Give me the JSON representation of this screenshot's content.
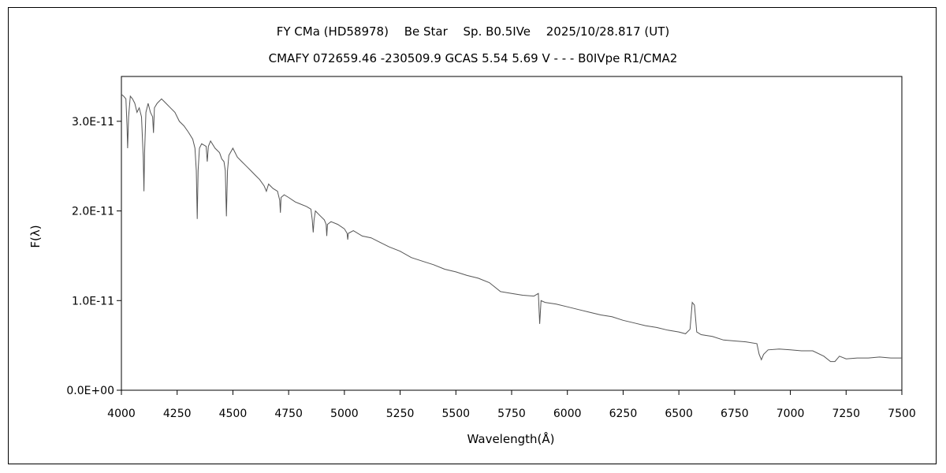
{
  "chart_data": {
    "type": "line",
    "title": "FY CMa (HD58978)　 Be Star　 Sp. B0.5IVe　 2025/10/28.817 (UT)",
    "subtitle": "CMAFY 072659.46 -230509.9 GCAS 5.54 5.69 V - - - B0IVpe R1/CMA2",
    "xlabel": "Wavelength(Å)",
    "ylabel": "F(λ)",
    "xlim": [
      4000,
      7500
    ],
    "ylim": [
      0,
      3.5e-11
    ],
    "xticks": [
      "4000",
      "4250",
      "4500",
      "4750",
      "5000",
      "5250",
      "5500",
      "5750",
      "6000",
      "6250",
      "6500",
      "6750",
      "7000",
      "7250",
      "7500"
    ],
    "yticks": [
      {
        "value": 0,
        "label": "0.0E+00"
      },
      {
        "value": 1e-11,
        "label": "1.0E-11"
      },
      {
        "value": 2e-11,
        "label": "2.0E-11"
      },
      {
        "value": 3e-11,
        "label": "3.0E-11"
      }
    ],
    "grid": false,
    "series": [
      {
        "color": "#555555",
        "points": [
          [
            4000,
            3.3e-11
          ],
          [
            4010,
            3.28e-11
          ],
          [
            4020,
            3.25e-11
          ],
          [
            4025,
            2.95e-11
          ],
          [
            4028,
            2.7e-11
          ],
          [
            4032,
            3.05e-11
          ],
          [
            4040,
            3.28e-11
          ],
          [
            4050,
            3.25e-11
          ],
          [
            4060,
            3.2e-11
          ],
          [
            4070,
            3.1e-11
          ],
          [
            4080,
            3.15e-11
          ],
          [
            4090,
            3.05e-11
          ],
          [
            4098,
            2.6e-11
          ],
          [
            4101,
            2.22e-11
          ],
          [
            4104,
            2.65e-11
          ],
          [
            4110,
            3.1e-11
          ],
          [
            4120,
            3.2e-11
          ],
          [
            4130,
            3.1e-11
          ],
          [
            4140,
            3.05e-11
          ],
          [
            4144,
            2.87e-11
          ],
          [
            4148,
            3.15e-11
          ],
          [
            4160,
            3.2e-11
          ],
          [
            4180,
            3.25e-11
          ],
          [
            4200,
            3.2e-11
          ],
          [
            4220,
            3.15e-11
          ],
          [
            4240,
            3.1e-11
          ],
          [
            4260,
            3e-11
          ],
          [
            4280,
            2.95e-11
          ],
          [
            4300,
            2.88e-11
          ],
          [
            4320,
            2.8e-11
          ],
          [
            4330,
            2.7e-11
          ],
          [
            4336,
            2.45e-11
          ],
          [
            4340,
            1.91e-11
          ],
          [
            4344,
            2.45e-11
          ],
          [
            4350,
            2.7e-11
          ],
          [
            4360,
            2.75e-11
          ],
          [
            4380,
            2.72e-11
          ],
          [
            4385,
            2.55e-11
          ],
          [
            4390,
            2.72e-11
          ],
          [
            4400,
            2.78e-11
          ],
          [
            4420,
            2.7e-11
          ],
          [
            4440,
            2.65e-11
          ],
          [
            4450,
            2.58e-11
          ],
          [
            4460,
            2.55e-11
          ],
          [
            4466,
            2.45e-11
          ],
          [
            4471,
            1.94e-11
          ],
          [
            4476,
            2.45e-11
          ],
          [
            4482,
            2.62e-11
          ],
          [
            4500,
            2.7e-11
          ],
          [
            4520,
            2.6e-11
          ],
          [
            4540,
            2.55e-11
          ],
          [
            4560,
            2.5e-11
          ],
          [
            4580,
            2.45e-11
          ],
          [
            4600,
            2.4e-11
          ],
          [
            4620,
            2.35e-11
          ],
          [
            4640,
            2.28e-11
          ],
          [
            4650,
            2.22e-11
          ],
          [
            4660,
            2.3e-11
          ],
          [
            4680,
            2.25e-11
          ],
          [
            4700,
            2.22e-11
          ],
          [
            4710,
            2.12e-11
          ],
          [
            4713,
            1.98e-11
          ],
          [
            4716,
            2.15e-11
          ],
          [
            4730,
            2.18e-11
          ],
          [
            4750,
            2.15e-11
          ],
          [
            4780,
            2.1e-11
          ],
          [
            4800,
            2.08e-11
          ],
          [
            4830,
            2.05e-11
          ],
          [
            4850,
            2.02e-11
          ],
          [
            4856,
            1.9e-11
          ],
          [
            4860,
            1.76e-11
          ],
          [
            4864,
            1.9e-11
          ],
          [
            4870,
            2e-11
          ],
          [
            4890,
            1.95e-11
          ],
          [
            4910,
            1.9e-11
          ],
          [
            4918,
            1.85e-11
          ],
          [
            4921,
            1.72e-11
          ],
          [
            4924,
            1.85e-11
          ],
          [
            4940,
            1.88e-11
          ],
          [
            4970,
            1.85e-11
          ],
          [
            5000,
            1.8e-11
          ],
          [
            5012,
            1.75e-11
          ],
          [
            5015,
            1.68e-11
          ],
          [
            5018,
            1.75e-11
          ],
          [
            5040,
            1.78e-11
          ],
          [
            5080,
            1.72e-11
          ],
          [
            5120,
            1.7e-11
          ],
          [
            5160,
            1.65e-11
          ],
          [
            5200,
            1.6e-11
          ],
          [
            5250,
            1.55e-11
          ],
          [
            5300,
            1.48e-11
          ],
          [
            5350,
            1.44e-11
          ],
          [
            5400,
            1.4e-11
          ],
          [
            5450,
            1.35e-11
          ],
          [
            5500,
            1.32e-11
          ],
          [
            5550,
            1.28e-11
          ],
          [
            5600,
            1.25e-11
          ],
          [
            5650,
            1.2e-11
          ],
          [
            5700,
            1.1e-11
          ],
          [
            5750,
            1.08e-11
          ],
          [
            5800,
            1.06e-11
          ],
          [
            5850,
            1.05e-11
          ],
          [
            5870,
            1.08e-11
          ],
          [
            5876,
            7.4e-12
          ],
          [
            5882,
            1e-11
          ],
          [
            5900,
            9.8e-12
          ],
          [
            5950,
            9.6e-12
          ],
          [
            6000,
            9.3e-12
          ],
          [
            6050,
            9e-12
          ],
          [
            6100,
            8.7e-12
          ],
          [
            6150,
            8.4e-12
          ],
          [
            6200,
            8.2e-12
          ],
          [
            6250,
            7.8e-12
          ],
          [
            6300,
            7.5e-12
          ],
          [
            6350,
            7.2e-12
          ],
          [
            6400,
            7e-12
          ],
          [
            6450,
            6.7e-12
          ],
          [
            6500,
            6.5e-12
          ],
          [
            6530,
            6.3e-12
          ],
          [
            6550,
            6.8e-12
          ],
          [
            6560,
            9.8e-12
          ],
          [
            6570,
            9.5e-12
          ],
          [
            6580,
            6.5e-12
          ],
          [
            6600,
            6.2e-12
          ],
          [
            6650,
            6e-12
          ],
          [
            6700,
            5.6e-12
          ],
          [
            6750,
            5.5e-12
          ],
          [
            6800,
            5.4e-12
          ],
          [
            6850,
            5.2e-12
          ],
          [
            6860,
            4e-12
          ],
          [
            6870,
            3.4e-12
          ],
          [
            6880,
            4e-12
          ],
          [
            6900,
            4.5e-12
          ],
          [
            6950,
            4.6e-12
          ],
          [
            7000,
            4.5e-12
          ],
          [
            7050,
            4.4e-12
          ],
          [
            7100,
            4.4e-12
          ],
          [
            7150,
            3.8e-12
          ],
          [
            7180,
            3.2e-12
          ],
          [
            7200,
            3.2e-12
          ],
          [
            7220,
            3.8e-12
          ],
          [
            7250,
            3.5e-12
          ],
          [
            7300,
            3.6e-12
          ],
          [
            7350,
            3.6e-12
          ],
          [
            7400,
            3.7e-12
          ],
          [
            7450,
            3.6e-12
          ],
          [
            7500,
            3.6e-12
          ]
        ]
      }
    ]
  }
}
